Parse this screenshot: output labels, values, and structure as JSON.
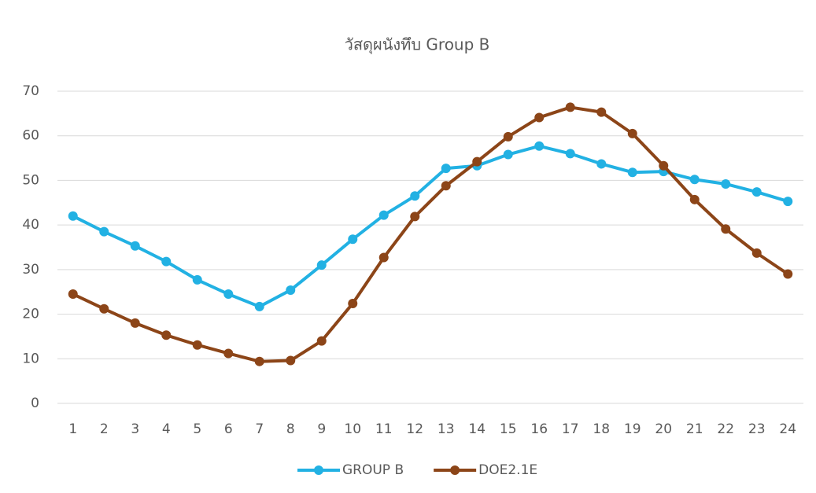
{
  "chart_data": {
    "type": "line",
    "title": "วัสดุผนังทึบ Group B",
    "categories": [
      "1",
      "2",
      "3",
      "4",
      "5",
      "6",
      "7",
      "8",
      "9",
      "10",
      "11",
      "12",
      "13",
      "14",
      "15",
      "16",
      "17",
      "18",
      "19",
      "20",
      "21",
      "22",
      "23",
      "24"
    ],
    "series": [
      {
        "name": "GROUP B",
        "color": "#22b1e3",
        "values": [
          42,
          38.5,
          35.3,
          31.8,
          27.7,
          24.5,
          21.7,
          25.4,
          31,
          36.8,
          42.2,
          46.5,
          52.7,
          53.3,
          55.8,
          57.7,
          56,
          53.7,
          51.8,
          52,
          50.2,
          49.2,
          47.4,
          45.3
        ]
      },
      {
        "name": "DOE2.1E",
        "color": "#8c4518",
        "values": [
          24.5,
          21.2,
          18,
          15.3,
          13.1,
          11.2,
          9.4,
          9.6,
          14,
          22.4,
          32.7,
          41.9,
          48.8,
          54.2,
          59.8,
          64.1,
          66.4,
          65.3,
          60.5,
          53.3,
          45.7,
          39.1,
          33.7,
          29
        ]
      }
    ],
    "ylim": [
      0,
      70
    ],
    "yticks": [
      0,
      10,
      20,
      30,
      40,
      50,
      60,
      70
    ],
    "grid": true,
    "legend": "bottom"
  }
}
